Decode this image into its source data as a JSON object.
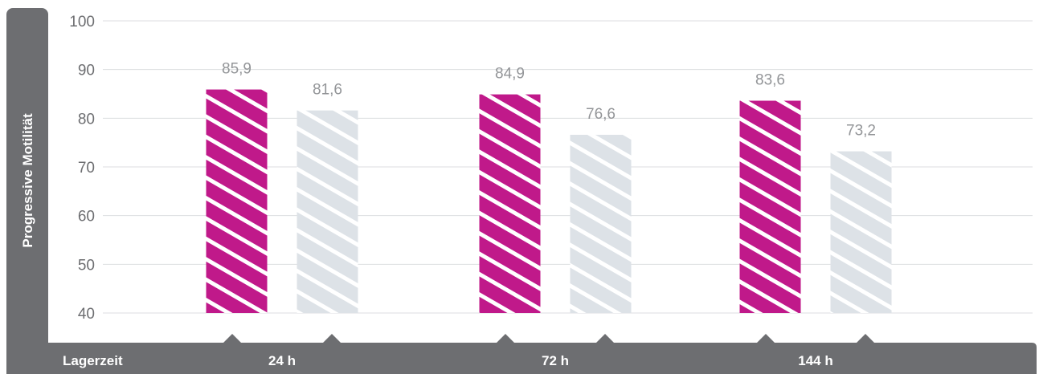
{
  "chart_data": {
    "type": "bar",
    "ylabel": "Progressive Motilität",
    "xlabel": "Lagerzeit",
    "categories": [
      "24 h",
      "72 h",
      "144 h"
    ],
    "series": [
      {
        "values": [
          85.9,
          84.9,
          83.6
        ],
        "labels": [
          "85,9",
          "84,9",
          "83,6"
        ],
        "color": "#c0198a"
      },
      {
        "values": [
          81.6,
          76.6,
          73.2
        ],
        "labels": [
          "81,6",
          "76,6",
          "73,2"
        ],
        "color": "#dde2e7"
      }
    ],
    "ylim": [
      40,
      100
    ],
    "yticks": [
      "40",
      "50",
      "60",
      "70",
      "80",
      "90",
      "100"
    ],
    "grid": true,
    "colors": {
      "axis_panel": "#6d6e71",
      "tick_text": "#6d6e71",
      "value_text": "#939598",
      "grid": "#dcdee0"
    }
  }
}
